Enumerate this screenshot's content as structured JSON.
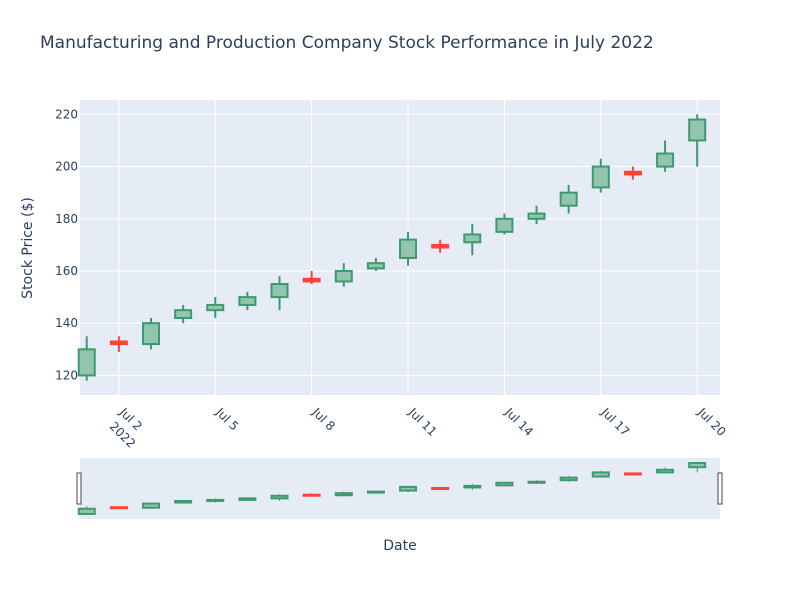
{
  "chart_data": {
    "type": "candlestick",
    "title": "Manufacturing and Production Company Stock Performance in July 2022",
    "xlabel": "Date",
    "ylabel": "Stock Price ($)",
    "x_tick_labels": [
      "Jul 2",
      "Jul 5",
      "Jul 8",
      "Jul 11",
      "Jul 14",
      "Jul 17",
      "Jul 20"
    ],
    "x_tick_days": [
      2,
      5,
      8,
      11,
      14,
      17,
      20
    ],
    "x_year_label": "2022",
    "y_ticks": [
      120,
      140,
      160,
      180,
      200,
      220
    ],
    "ylim": [
      112.5,
      225.5
    ],
    "xlim_days": [
      0.79,
      20.71
    ],
    "increasing_color": "#3d9970",
    "increasing_fill": "#93c4ae",
    "decreasing_color": "#ff4136",
    "plot_background": "#e5ecf6",
    "grid": true,
    "range_slider": true,
    "candles": [
      {
        "date": "2022-07-01",
        "open": 120,
        "high": 135,
        "low": 118,
        "close": 130
      },
      {
        "date": "2022-07-02",
        "open": 133,
        "high": 135,
        "low": 129,
        "close": 132
      },
      {
        "date": "2022-07-03",
        "open": 132,
        "high": 142,
        "low": 130,
        "close": 140
      },
      {
        "date": "2022-07-04",
        "open": 142,
        "high": 147,
        "low": 140,
        "close": 145
      },
      {
        "date": "2022-07-05",
        "open": 145,
        "high": 150,
        "low": 142,
        "close": 147
      },
      {
        "date": "2022-07-06",
        "open": 147,
        "high": 152,
        "low": 145,
        "close": 150
      },
      {
        "date": "2022-07-07",
        "open": 150,
        "high": 158,
        "low": 145,
        "close": 155
      },
      {
        "date": "2022-07-08",
        "open": 157,
        "high": 160,
        "low": 155,
        "close": 156
      },
      {
        "date": "2022-07-09",
        "open": 156,
        "high": 163,
        "low": 154,
        "close": 160
      },
      {
        "date": "2022-07-10",
        "open": 161,
        "high": 165,
        "low": 160,
        "close": 163
      },
      {
        "date": "2022-07-11",
        "open": 165,
        "high": 175,
        "low": 162,
        "close": 172
      },
      {
        "date": "2022-07-12",
        "open": 170,
        "high": 172,
        "low": 167,
        "close": 169
      },
      {
        "date": "2022-07-13",
        "open": 171,
        "high": 178,
        "low": 166,
        "close": 174
      },
      {
        "date": "2022-07-14",
        "open": 175,
        "high": 182,
        "low": 174,
        "close": 180
      },
      {
        "date": "2022-07-15",
        "open": 180,
        "high": 185,
        "low": 178,
        "close": 182
      },
      {
        "date": "2022-07-16",
        "open": 185,
        "high": 193,
        "low": 182,
        "close": 190
      },
      {
        "date": "2022-07-17",
        "open": 192,
        "high": 203,
        "low": 190,
        "close": 200
      },
      {
        "date": "2022-07-18",
        "open": 198,
        "high": 200,
        "low": 195,
        "close": 197
      },
      {
        "date": "2022-07-19",
        "open": 200,
        "high": 210,
        "low": 198,
        "close": 205
      },
      {
        "date": "2022-07-20",
        "open": 210,
        "high": 220,
        "low": 200,
        "close": 218
      }
    ]
  }
}
